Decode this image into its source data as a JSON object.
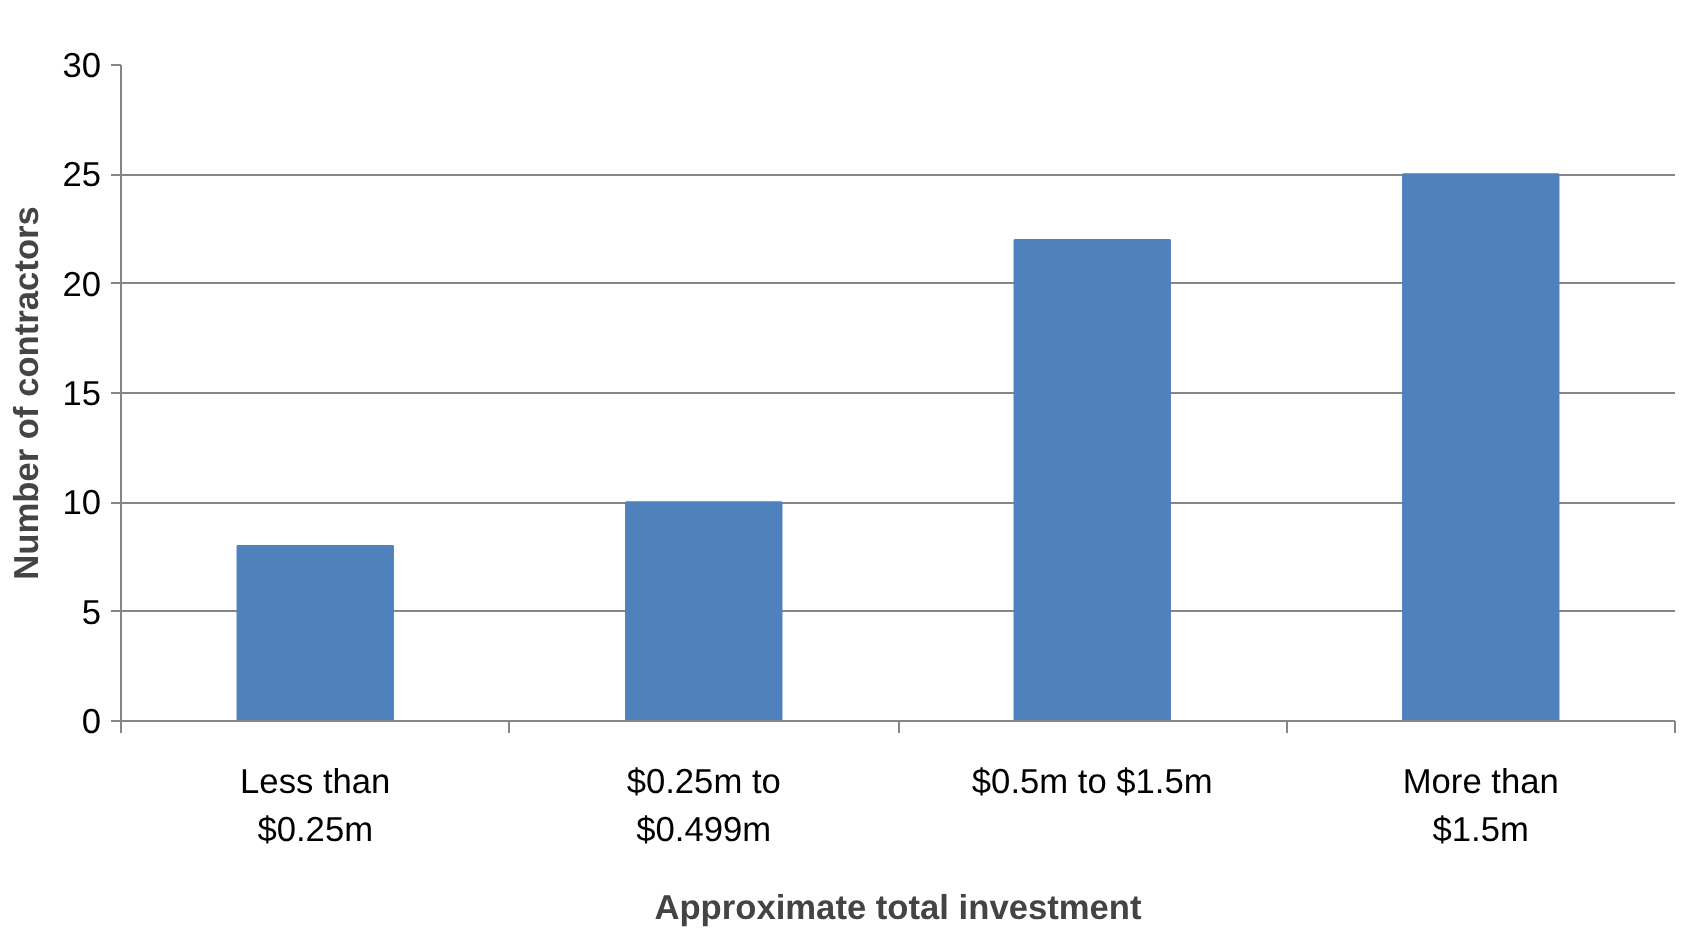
{
  "chart_data": {
    "type": "bar",
    "xlabel": "Approximate total investment",
    "ylabel": "Number of contractors",
    "categories": [
      "Less than\n$0.25m",
      "$0.25m to\n$0.499m",
      "$0.5m to $1.5m",
      "More than\n$1.5m"
    ],
    "values": [
      8,
      10,
      22,
      25
    ],
    "color": "#4f81bd",
    "ylim": [
      0,
      30
    ],
    "yticks": [
      0,
      5,
      10,
      15,
      20,
      25,
      30
    ],
    "grid": "y"
  }
}
